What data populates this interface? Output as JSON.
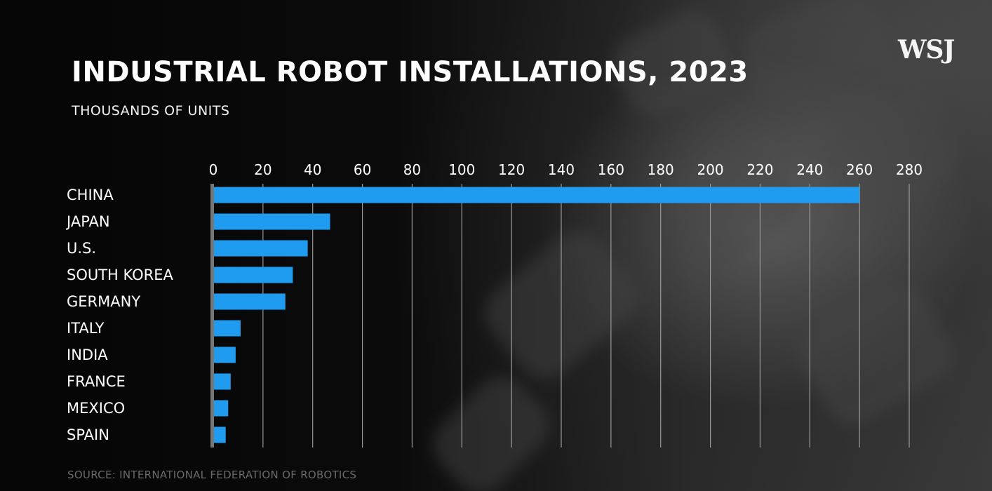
{
  "brand": "WSJ",
  "source": "SOURCE: INTERNATIONAL FEDERATION OF ROBOTICS",
  "colors": {
    "bar": "#1f9cf0",
    "grid": "#9a9a9a",
    "axis": "#777777",
    "text": "#ffffff"
  },
  "chart_data": {
    "type": "bar",
    "orientation": "horizontal",
    "title": "INDUSTRIAL ROBOT INSTALLATIONS, 2023",
    "subtitle": "THOUSANDS OF UNITS",
    "categories": [
      "CHINA",
      "JAPAN",
      "U.S.",
      "SOUTH KOREA",
      "GERMANY",
      "ITALY",
      "INDIA",
      "FRANCE",
      "MEXICO",
      "SPAIN"
    ],
    "values": [
      260,
      47,
      38,
      32,
      29,
      11,
      9,
      7,
      6,
      5
    ],
    "xlim": [
      0,
      280
    ],
    "xticks": [
      0,
      20,
      40,
      60,
      80,
      100,
      120,
      140,
      160,
      180,
      200,
      220,
      240,
      260,
      280
    ],
    "xtick_labels": [
      "0",
      "20",
      "40",
      "60",
      "80",
      "100",
      "120",
      "140",
      "160",
      "180",
      "200",
      "220",
      "240",
      "260",
      "280"
    ],
    "grid": true,
    "legend": "none",
    "xlabel": "",
    "ylabel": ""
  }
}
